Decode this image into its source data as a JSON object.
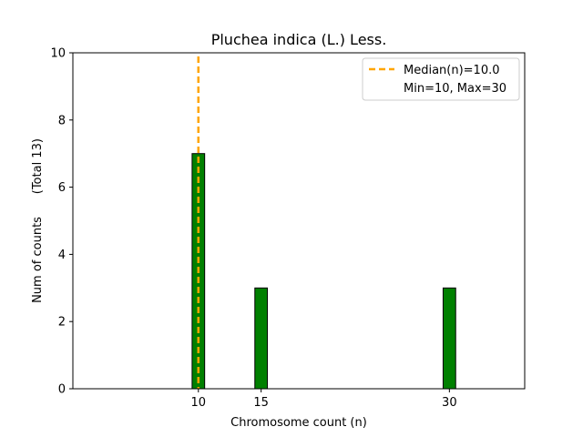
{
  "chart_data": {
    "type": "bar",
    "title": "Pluchea indica (L.) Less.",
    "xlabel": "Chromosome count (n)",
    "ylabel": "Num of counts      (Total 13)",
    "xlim": [
      0,
      36
    ],
    "ylim": [
      0,
      10
    ],
    "xticks": [
      10,
      15,
      30
    ],
    "yticks": [
      0,
      2,
      4,
      6,
      8,
      10
    ],
    "bin_width": 1,
    "bars": [
      {
        "x": 10,
        "value": 7
      },
      {
        "x": 15,
        "value": 3
      },
      {
        "x": 30,
        "value": 3
      }
    ],
    "bar_color": "#008000",
    "bar_edge_color": "#000000",
    "median": 10.0,
    "median_color": "#ffa500",
    "legend": {
      "placement": "top-right",
      "entries": [
        "Median(n)=10.0",
        "Min=10, Max=30"
      ]
    },
    "grid": false
  }
}
